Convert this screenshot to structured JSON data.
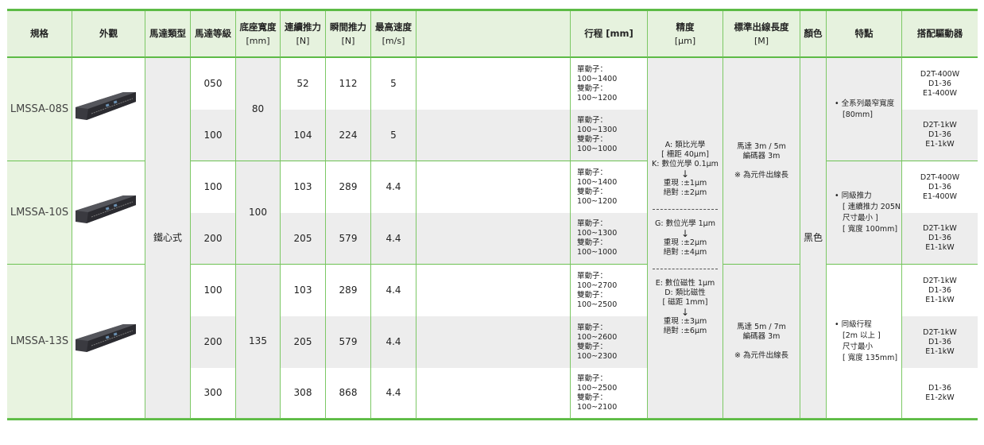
{
  "header": [
    {
      "t": "規格",
      "u": ""
    },
    {
      "t": "外觀",
      "u": ""
    },
    {
      "t": "馬達類型",
      "u": ""
    },
    {
      "t": "馬達等級",
      "u": ""
    },
    {
      "t": "底座寬度",
      "u": "[mm]"
    },
    {
      "t": "連續推力",
      "u": "[N]"
    },
    {
      "t": "瞬間推力",
      "u": "[N]"
    },
    {
      "t": "最高速度",
      "u": "[m/s]"
    },
    {
      "t": "",
      "u": ""
    },
    {
      "t": "行程 [mm]",
      "u": ""
    },
    {
      "t": "精度",
      "u": "[μm]"
    },
    {
      "t": "標準出線長度",
      "u": "[M]"
    },
    {
      "t": "顏色",
      "u": ""
    },
    {
      "t": "特點",
      "u": ""
    },
    {
      "t": "搭配驅動器",
      "u": ""
    }
  ],
  "motor_type": "鐵心式",
  "color": "黑色",
  "groups": [
    {
      "model": "LMSSA-08S",
      "image": "linear-motor-stage-photo",
      "base_width": "80",
      "feature": [
        "• 全系列最窄寬度",
        "[80mm]"
      ],
      "rows": [
        {
          "grade": "050",
          "cont": "52",
          "peak": "112",
          "speed": "5",
          "stroke": [
            "單動子：100~1400",
            "雙動子：100~1200"
          ],
          "drivers": [
            "D2T-400W",
            "D1-36",
            "E1-400W"
          ]
        },
        {
          "grade": "100",
          "cont": "104",
          "peak": "224",
          "speed": "5",
          "stroke": [
            "單動子：100~1300",
            "雙動子：100~1000"
          ],
          "drivers": [
            "D2T-1kW",
            "D1-36",
            "E1-1kW"
          ]
        }
      ]
    },
    {
      "model": "LMSSA-10S",
      "image": "linear-motor-stage-photo",
      "base_width": "100",
      "feature": [
        "• 同級推力",
        "[ 連續推力 205N",
        "尺寸最小 ]",
        "[ 寬度 100mm]"
      ],
      "rows": [
        {
          "grade": "100",
          "cont": "103",
          "peak": "289",
          "speed": "4.4",
          "stroke": [
            "單動子：100~1400",
            "雙動子：100~1200"
          ],
          "drivers": [
            "D2T-400W",
            "D1-36",
            "E1-400W"
          ]
        },
        {
          "grade": "200",
          "cont": "205",
          "peak": "579",
          "speed": "4.4",
          "stroke": [
            "單動子：100~1300",
            "雙動子：100~1000"
          ],
          "drivers": [
            "D2T-1kW",
            "D1-36",
            "E1-1kW"
          ]
        }
      ]
    },
    {
      "model": "LMSSA-13S",
      "image": "linear-motor-stage-photo",
      "base_width": "135",
      "feature": [
        "• 同級行程",
        "[2m 以上 ]",
        "尺寸最小",
        "[ 寬度 135mm]"
      ],
      "rows": [
        {
          "grade": "100",
          "cont": "103",
          "peak": "289",
          "speed": "4.4",
          "stroke": [
            "單動子：100~2700",
            "雙動子：100~2500"
          ],
          "drivers": [
            "D2T-1kW",
            "D1-36",
            "E1-1kW"
          ]
        },
        {
          "grade": "200",
          "cont": "205",
          "peak": "579",
          "speed": "4.4",
          "stroke": [
            "單動子：100~2600",
            "雙動子：100~2300"
          ],
          "drivers": [
            "D2T-1kW",
            "D1-36",
            "E1-1kW"
          ]
        },
        {
          "grade": "300",
          "cont": "308",
          "peak": "868",
          "speed": "4.4",
          "stroke": [
            "單動子：100~2500",
            "雙動子：100~2100"
          ],
          "drivers": [
            "D1-36",
            "E1-2kW"
          ]
        }
      ]
    }
  ],
  "precision": [
    [
      "A: 類比光學",
      "[ 柵距 40μm]",
      "K: 數位光學 0.1μm",
      "↓",
      "重現 :±1μm",
      "絕對 :±2μm"
    ],
    [
      "G: 數位光學 1μm",
      "↓",
      "重現 :±2μm",
      "絕對 :±4μm"
    ],
    [
      "E: 數位磁性 1μm",
      "D: 類比磁性",
      "[ 磁距 1mm]",
      "↓",
      "重現 :±3μm",
      "絕對 :±6μm"
    ]
  ],
  "cable": [
    {
      "lines": [
        "馬達 3m / 5m",
        "編碼器 3m"
      ],
      "note": "※ 為元件出線長"
    },
    {
      "lines": [
        "馬達 5m / 7m",
        "編碼器 3m"
      ],
      "note": "※ 為元件出線長"
    }
  ],
  "colors": {
    "border": "#5dbb46",
    "header_bg": "#e6f2de",
    "model_bg": "#e8f3e0",
    "stripe": "#ededed"
  }
}
